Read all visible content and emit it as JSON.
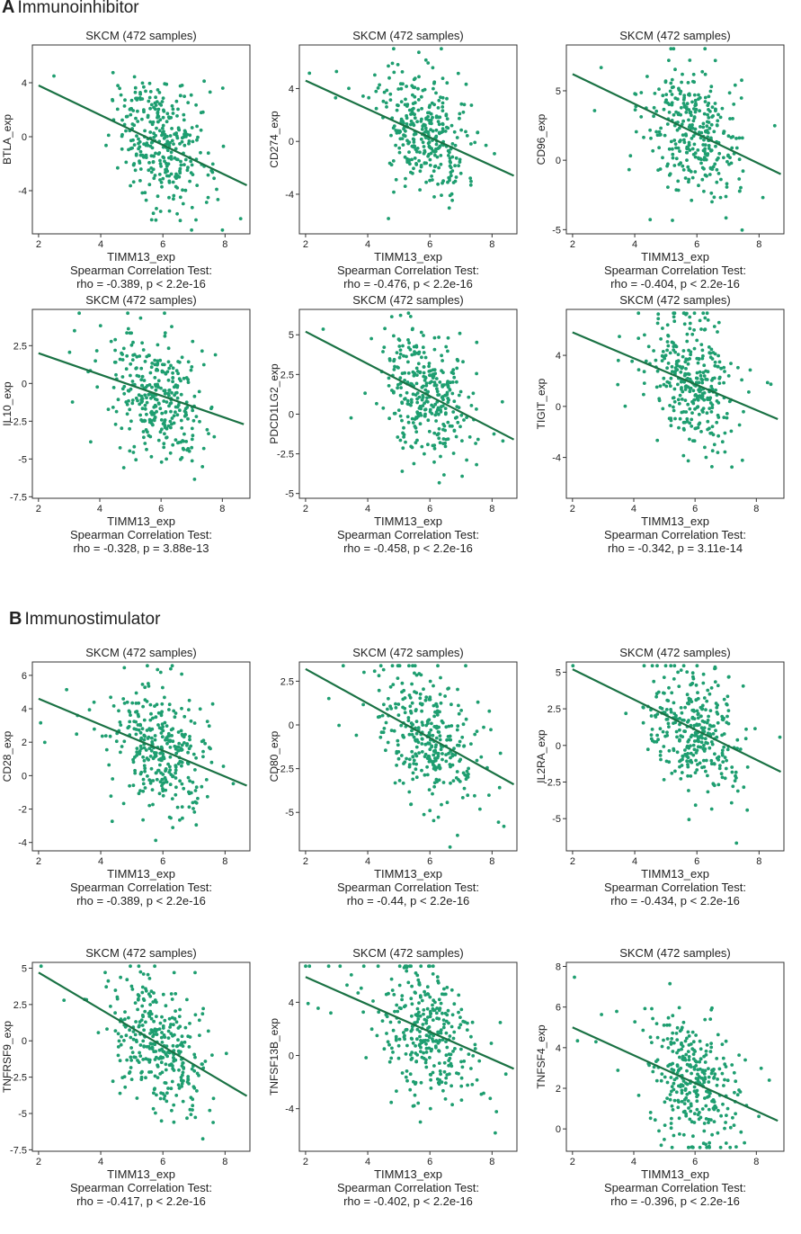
{
  "sections": {
    "A": {
      "letter": "A",
      "title": "Immunoinhibitor"
    },
    "B": {
      "letter": "B",
      "title": "Immunostimulator"
    }
  },
  "colors": {
    "points": "#1e9e70",
    "fit_line": "#1a7244",
    "frame": "#333333"
  },
  "chart_data": [
    {
      "section": "A",
      "type": "scatter",
      "title": "SKCM (472 samples)",
      "xlabel": "TIMM13_exp",
      "ylabel": "BTLA_exp",
      "xlim": [
        1.8,
        8.8
      ],
      "ylim": [
        -7.2,
        6.8
      ],
      "xticks": [
        2,
        4,
        6,
        8
      ],
      "yticks": [
        -4,
        0,
        4
      ],
      "fit": {
        "x": [
          2,
          8.7
        ],
        "y": [
          3.8,
          -3.6
        ]
      },
      "test": "Spearman Correlation Test:",
      "stat": "rho = -0.389, p < 2.2e-16"
    },
    {
      "section": "A",
      "type": "scatter",
      "title": "SKCM (472 samples)",
      "xlabel": "TIMM13_exp",
      "ylabel": "CD274_exp",
      "xlim": [
        1.8,
        8.8
      ],
      "ylim": [
        -7,
        7.3
      ],
      "xticks": [
        2,
        4,
        6,
        8
      ],
      "yticks": [
        -4,
        0,
        4
      ],
      "fit": {
        "x": [
          2,
          8.7
        ],
        "y": [
          4.6,
          -2.6
        ]
      },
      "test": "Spearman Correlation Test:",
      "stat": "rho = -0.476, p < 2.2e-16"
    },
    {
      "section": "A",
      "type": "scatter",
      "title": "SKCM (472 samples)",
      "xlabel": "TIMM13_exp",
      "ylabel": "CD96_exp",
      "xlim": [
        1.8,
        8.8
      ],
      "ylim": [
        -5.3,
        8.3
      ],
      "xticks": [
        2,
        4,
        6,
        8
      ],
      "yticks": [
        -5,
        0,
        5
      ],
      "fit": {
        "x": [
          2,
          8.7
        ],
        "y": [
          6.2,
          -1.0
        ]
      },
      "test": "Spearman Correlation Test:",
      "stat": "rho = -0.404, p < 2.2e-16"
    },
    {
      "section": "A",
      "type": "scatter",
      "title": "SKCM (472 samples)",
      "xlabel": "TIMM13_exp",
      "ylabel": "IL10_exp",
      "xlim": [
        1.8,
        8.9
      ],
      "ylim": [
        -7.6,
        4.9
      ],
      "xticks": [
        2,
        4,
        6,
        8
      ],
      "yticks": [
        -7.5,
        -5.0,
        -2.5,
        0.0,
        2.5
      ],
      "fit": {
        "x": [
          2,
          8.7
        ],
        "y": [
          2.0,
          -2.7
        ]
      },
      "test": "Spearman Correlation Test:",
      "stat": "rho = -0.328, p = 3.88e-13"
    },
    {
      "section": "A",
      "type": "scatter",
      "title": "SKCM (472 samples)",
      "xlabel": "TIMM13_exp",
      "ylabel": "PDCD1LG2_exp",
      "xlim": [
        1.8,
        8.8
      ],
      "ylim": [
        -5.3,
        6.6
      ],
      "xticks": [
        2,
        4,
        6,
        8
      ],
      "yticks": [
        -5.0,
        -2.5,
        0.0,
        2.5,
        5.0
      ],
      "fit": {
        "x": [
          2,
          8.7
        ],
        "y": [
          5.2,
          -1.6
        ]
      },
      "test": "Spearman Correlation Test:",
      "stat": "rho = -0.458, p < 2.2e-16"
    },
    {
      "section": "A",
      "type": "scatter",
      "title": "SKCM (472 samples)",
      "xlabel": "TIMM13_exp",
      "ylabel": "TIGIT_exp",
      "xlim": [
        1.8,
        8.9
      ],
      "ylim": [
        -7.2,
        7.6
      ],
      "xticks": [
        2,
        4,
        6,
        8
      ],
      "yticks": [
        -4,
        0,
        4
      ],
      "fit": {
        "x": [
          2,
          8.7
        ],
        "y": [
          5.8,
          -1.0
        ]
      },
      "test": "Spearman Correlation Test:",
      "stat": "rho = -0.342, p = 3.11e-14"
    },
    {
      "section": "B",
      "type": "scatter",
      "title": "SKCM (472 samples)",
      "xlabel": "TIMM13_exp",
      "ylabel": "CD28_exp",
      "xlim": [
        1.8,
        8.8
      ],
      "ylim": [
        -4.5,
        6.8
      ],
      "xticks": [
        2,
        4,
        6,
        8
      ],
      "yticks": [
        -4,
        -2,
        0,
        2,
        4,
        6
      ],
      "fit": {
        "x": [
          2,
          8.7
        ],
        "y": [
          4.6,
          -0.6
        ]
      },
      "test": "Spearman Correlation Test:",
      "stat": "rho = -0.389, p < 2.2e-16"
    },
    {
      "section": "B",
      "type": "scatter",
      "title": "SKCM (472 samples)",
      "xlabel": "TIMM13_exp",
      "ylabel": "CD80_exp",
      "xlim": [
        1.8,
        8.8
      ],
      "ylim": [
        -7.2,
        3.6
      ],
      "xticks": [
        2,
        4,
        6,
        8
      ],
      "yticks": [
        -5.0,
        -2.5,
        0.0,
        2.5
      ],
      "fit": {
        "x": [
          2,
          8.7
        ],
        "y": [
          3.2,
          -3.4
        ]
      },
      "test": "Spearman Correlation Test:",
      "stat": "rho = -0.44, p < 2.2e-16"
    },
    {
      "section": "B",
      "type": "scatter",
      "title": "SKCM (472 samples)",
      "xlabel": "TIMM13_exp",
      "ylabel": "IL2RA_exp",
      "xlim": [
        1.8,
        8.8
      ],
      "ylim": [
        -7.2,
        5.7
      ],
      "xticks": [
        2,
        4,
        6,
        8
      ],
      "yticks": [
        -5.0,
        -2.5,
        0.0,
        2.5,
        5.0
      ],
      "fit": {
        "x": [
          2,
          8.7
        ],
        "y": [
          5.2,
          -1.8
        ]
      },
      "test": "Spearman Correlation Test:",
      "stat": "rho = -0.434, p < 2.2e-16"
    },
    {
      "section": "B",
      "type": "scatter",
      "title": "SKCM (472 samples)",
      "xlabel": "TIMM13_exp",
      "ylabel": "TNFRSF9_exp",
      "xlim": [
        1.8,
        8.8
      ],
      "ylim": [
        -7.6,
        5.4
      ],
      "xticks": [
        2,
        4,
        6,
        8
      ],
      "yticks": [
        -7.5,
        -5.0,
        -2.5,
        0.0,
        2.5,
        5.0
      ],
      "fit": {
        "x": [
          2,
          8.7
        ],
        "y": [
          4.7,
          -3.8
        ]
      },
      "test": "Spearman Correlation Test:",
      "stat": "rho = -0.417, p < 2.2e-16"
    },
    {
      "section": "B",
      "type": "scatter",
      "title": "SKCM (472 samples)",
      "xlabel": "TIMM13_exp",
      "ylabel": "TNFSF13B_exp",
      "xlim": [
        1.8,
        8.8
      ],
      "ylim": [
        -7.2,
        7.0
      ],
      "xticks": [
        2,
        4,
        6,
        8
      ],
      "yticks": [
        -4,
        0,
        4
      ],
      "fit": {
        "x": [
          2,
          8.7
        ],
        "y": [
          5.9,
          -1.0
        ]
      },
      "test": "Spearman Correlation Test:",
      "stat": "rho = -0.402, p < 2.2e-16"
    },
    {
      "section": "B",
      "type": "scatter",
      "title": "SKCM (472 samples)",
      "xlabel": "TIMM13_exp",
      "ylabel": "TNFSF4_exp",
      "xlim": [
        1.8,
        8.9
      ],
      "ylim": [
        -1.1,
        8.2
      ],
      "xticks": [
        2,
        4,
        6,
        8
      ],
      "yticks": [
        0,
        2,
        4,
        6,
        8
      ],
      "fit": {
        "x": [
          2,
          8.7
        ],
        "y": [
          5.0,
          0.4
        ]
      },
      "test": "Spearman Correlation Test:",
      "stat": "rho = -0.396, p < 2.2e-16"
    }
  ]
}
